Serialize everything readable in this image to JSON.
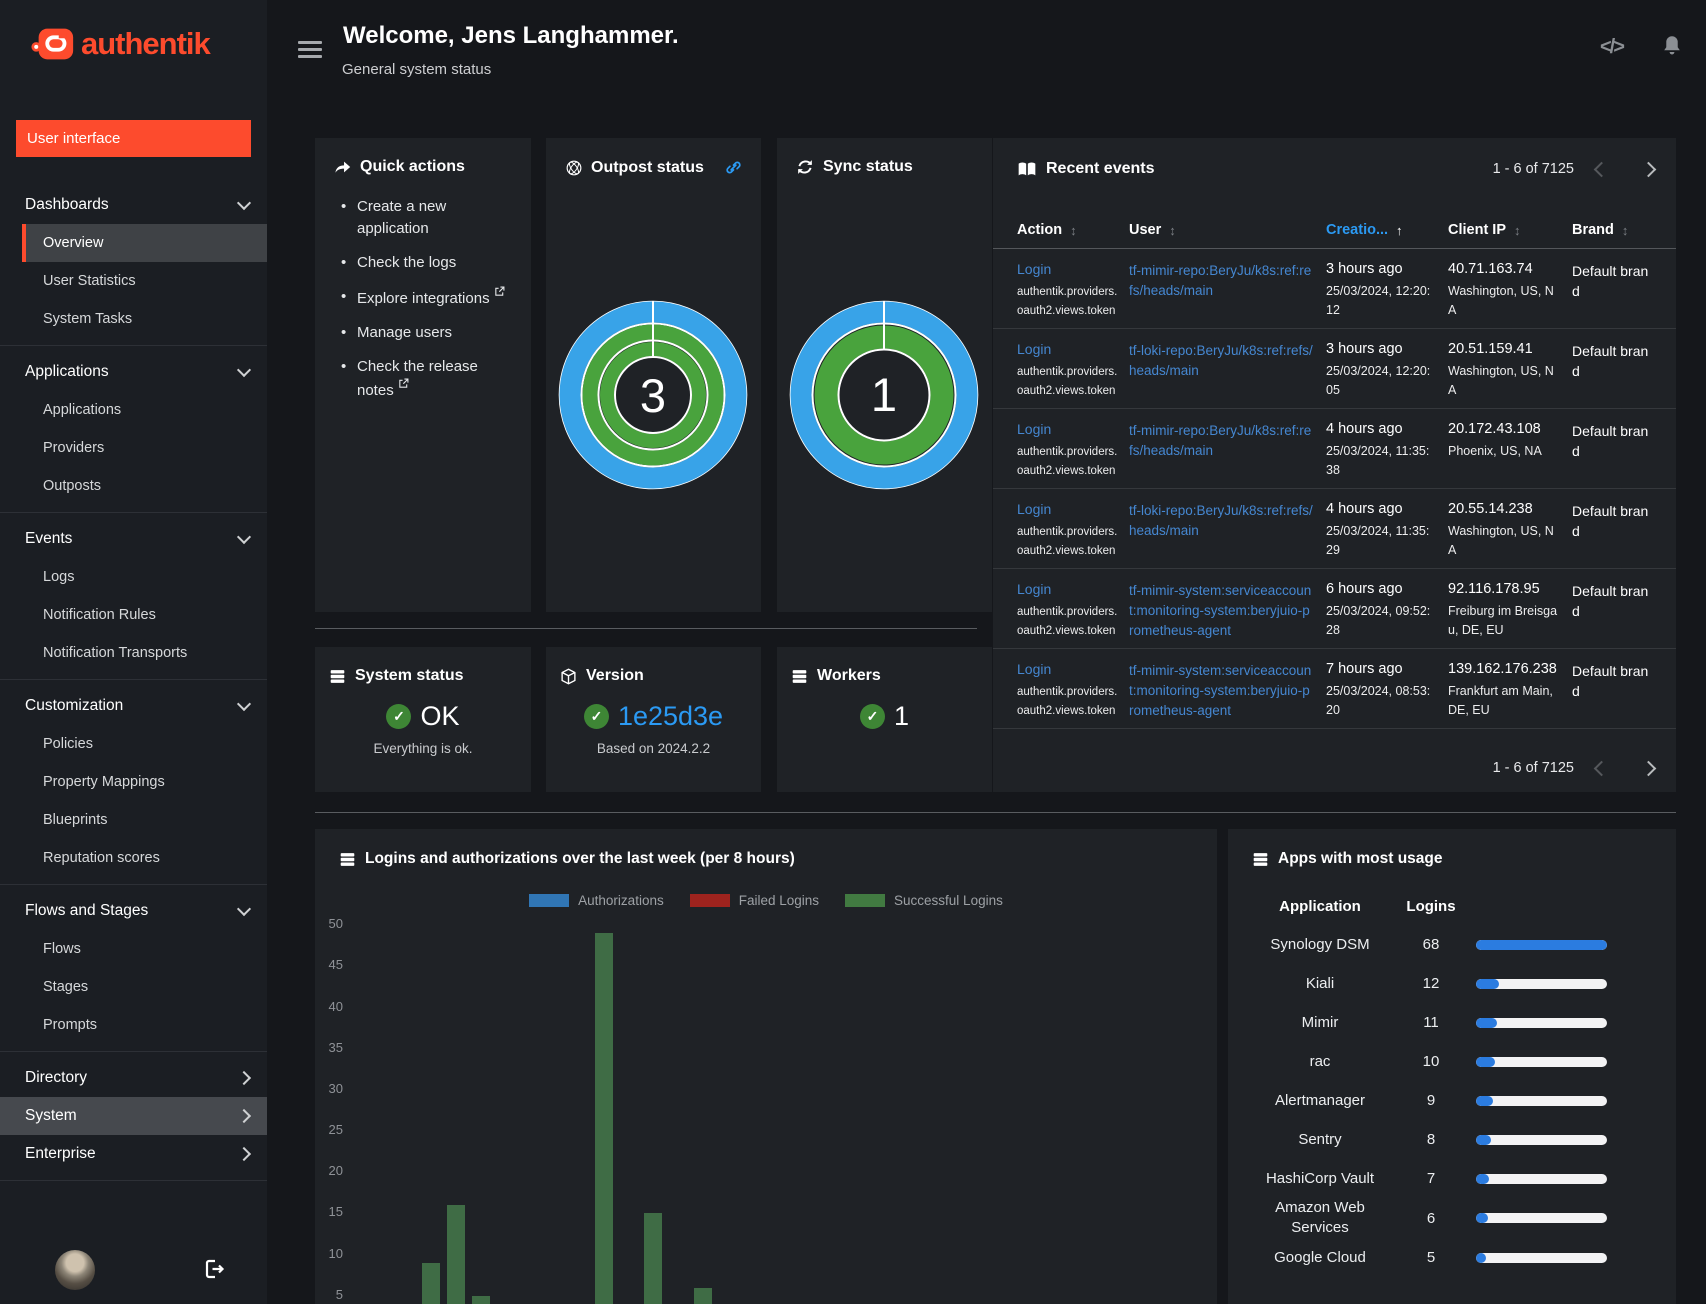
{
  "colors": {
    "accent": "#fd4b2d",
    "link": "#4587d1",
    "link_bright": "#2b9af3",
    "success": "#3e8635",
    "donut_blue": "#38a3e8",
    "donut_green": "#49a33d",
    "bar_green": "#3f6c45",
    "progress_fill": "#2b7ce0"
  },
  "icons": {
    "api_glyph": "</>"
  },
  "sidebar": {
    "logo_text": "authentik",
    "user_interface_button": "User interface",
    "sections": [
      {
        "label": "Dashboards",
        "expanded": true,
        "items": [
          {
            "label": "Overview",
            "active": true
          },
          {
            "label": "User Statistics"
          },
          {
            "label": "System Tasks"
          }
        ]
      },
      {
        "label": "Applications",
        "expanded": true,
        "items": [
          {
            "label": "Applications"
          },
          {
            "label": "Providers"
          },
          {
            "label": "Outposts"
          }
        ]
      },
      {
        "label": "Events",
        "expanded": true,
        "items": [
          {
            "label": "Logs"
          },
          {
            "label": "Notification Rules"
          },
          {
            "label": "Notification Transports"
          }
        ]
      },
      {
        "label": "Customization",
        "expanded": true,
        "items": [
          {
            "label": "Policies"
          },
          {
            "label": "Property Mappings"
          },
          {
            "label": "Blueprints"
          },
          {
            "label": "Reputation scores"
          }
        ]
      },
      {
        "label": "Flows and Stages",
        "expanded": true,
        "items": [
          {
            "label": "Flows"
          },
          {
            "label": "Stages"
          },
          {
            "label": "Prompts"
          }
        ]
      },
      {
        "label": "Directory",
        "expanded": false,
        "items": []
      },
      {
        "label": "System",
        "expanded": false,
        "highlighted": true,
        "items": []
      },
      {
        "label": "Enterprise",
        "expanded": false,
        "items": []
      }
    ]
  },
  "header": {
    "title": "Welcome, Jens Langhammer.",
    "subtitle": "General system status"
  },
  "quick_actions": {
    "title": "Quick actions",
    "items": [
      {
        "label": "Create a new application",
        "external": false
      },
      {
        "label": "Check the logs",
        "external": false
      },
      {
        "label": "Explore integrations",
        "external": true
      },
      {
        "label": "Manage users",
        "external": false
      },
      {
        "label": "Check the release notes",
        "external": true
      }
    ]
  },
  "outpost_status": {
    "title": "Outpost status",
    "value": "3"
  },
  "sync_status": {
    "title": "Sync status",
    "value": "1"
  },
  "recent_events": {
    "title": "Recent events",
    "pagination": "1 - 6 of 7125",
    "columns": [
      {
        "label": "Action",
        "sort": "both"
      },
      {
        "label": "User",
        "sort": "both"
      },
      {
        "label": "Creatio...",
        "sort": "asc",
        "active": true
      },
      {
        "label": "Client IP",
        "sort": "both"
      },
      {
        "label": "Brand",
        "sort": "both"
      }
    ],
    "rows": [
      {
        "action": "Login",
        "detail": "authentik.providers.oauth2.views.token",
        "user": "tf-mimir-repo:BeryJu/k8s:ref:refs/heads/main",
        "time_ago": "3 hours ago",
        "timestamp": "25/03/2024, 12:20:12",
        "ip": "40.71.163.74",
        "location": "Washington, US, NA",
        "brand": "Default brand"
      },
      {
        "action": "Login",
        "detail": "authentik.providers.oauth2.views.token",
        "user": "tf-loki-repo:BeryJu/k8s:ref:refs/heads/main",
        "time_ago": "3 hours ago",
        "timestamp": "25/03/2024, 12:20:05",
        "ip": "20.51.159.41",
        "location": "Washington, US, NA",
        "brand": "Default brand"
      },
      {
        "action": "Login",
        "detail": "authentik.providers.oauth2.views.token",
        "user": "tf-mimir-repo:BeryJu/k8s:ref:refs/heads/main",
        "time_ago": "4 hours ago",
        "timestamp": "25/03/2024, 11:35:38",
        "ip": "20.172.43.108",
        "location": "Phoenix, US, NA",
        "brand": "Default brand"
      },
      {
        "action": "Login",
        "detail": "authentik.providers.oauth2.views.token",
        "user": "tf-loki-repo:BeryJu/k8s:ref:refs/heads/main",
        "time_ago": "4 hours ago",
        "timestamp": "25/03/2024, 11:35:29",
        "ip": "20.55.14.238",
        "location": "Washington, US, NA",
        "brand": "Default brand"
      },
      {
        "action": "Login",
        "detail": "authentik.providers.oauth2.views.token",
        "user": "tf-mimir-system:serviceaccount:monitoring-system:beryjuio-prometheus-agent",
        "time_ago": "6 hours ago",
        "timestamp": "25/03/2024, 09:52:28",
        "ip": "92.116.178.95",
        "location": "Freiburg im Breisgau, DE, EU",
        "brand": "Default brand"
      },
      {
        "action": "Login",
        "detail": "authentik.providers.oauth2.views.token",
        "user": "tf-mimir-system:serviceaccount:monitoring-system:beryjuio-prometheus-agent",
        "time_ago": "7 hours ago",
        "timestamp": "25/03/2024, 08:53:20",
        "ip": "139.162.176.238",
        "location": "Frankfurt am Main, DE, EU",
        "brand": "Default brand"
      }
    ]
  },
  "system_status": {
    "title": "System status",
    "value": "OK",
    "subtitle": "Everything is ok."
  },
  "version": {
    "title": "Version",
    "value": "1e25d3e",
    "subtitle": "Based on 2024.2.2"
  },
  "workers": {
    "title": "Workers",
    "value": "1"
  },
  "apps_usage": {
    "title": "Apps with most usage",
    "col_app": "Application",
    "col_logins": "Logins",
    "max": 68,
    "rows": [
      {
        "app": "Synology DSM",
        "logins": 68
      },
      {
        "app": "Kiali",
        "logins": 12
      },
      {
        "app": "Mimir",
        "logins": 11
      },
      {
        "app": "rac",
        "logins": 10
      },
      {
        "app": "Alertmanager",
        "logins": 9
      },
      {
        "app": "Sentry",
        "logins": 8
      },
      {
        "app": "HashiCorp Vault",
        "logins": 7
      },
      {
        "app": "Amazon Web Services",
        "logins": 6
      },
      {
        "app": "Google Cloud",
        "logins": 5
      }
    ]
  },
  "chart_data": [
    {
      "type": "bar",
      "title": "Logins and authorizations over the last week (per 8 hours)",
      "xlabel": "",
      "ylabel": "",
      "ylim": [
        0,
        50
      ],
      "ytick_step": 5,
      "grid": false,
      "legend_position": "top",
      "x_bins": 21,
      "series": [
        {
          "name": "Authorizations",
          "color": "#3076b5",
          "values": [
            0,
            0,
            0,
            0,
            0,
            0,
            0,
            0,
            0,
            0,
            0,
            0,
            0,
            0,
            0,
            0,
            0,
            0,
            0,
            0,
            0
          ]
        },
        {
          "name": "Failed Logins",
          "color": "#9e231e",
          "values": [
            0,
            0,
            0,
            0,
            0,
            0,
            0,
            0,
            0,
            0,
            0,
            0,
            0,
            0,
            0,
            0,
            0,
            0,
            0,
            0,
            0
          ]
        },
        {
          "name": "Successful Logins",
          "color": "#417a41",
          "values": [
            0,
            0,
            0,
            9,
            16,
            5,
            0,
            0,
            0,
            0,
            49,
            0,
            15,
            0,
            6,
            3,
            0,
            0,
            0,
            0,
            0
          ]
        }
      ]
    },
    {
      "type": "pie",
      "variant": "donut",
      "title": "Outpost status",
      "center_label": "3",
      "rings": 3
    },
    {
      "type": "pie",
      "variant": "donut",
      "title": "Sync status",
      "center_label": "1",
      "rings": 2
    },
    {
      "type": "table",
      "title": "Apps with most usage",
      "columns": [
        "Application",
        "Logins"
      ],
      "rows": [
        [
          "Synology DSM",
          68
        ],
        [
          "Kiali",
          12
        ],
        [
          "Mimir",
          11
        ],
        [
          "rac",
          10
        ],
        [
          "Alertmanager",
          9
        ],
        [
          "Sentry",
          8
        ],
        [
          "HashiCorp Vault",
          7
        ],
        [
          "Amazon Web Services",
          6
        ],
        [
          "Google Cloud",
          5
        ]
      ]
    }
  ]
}
